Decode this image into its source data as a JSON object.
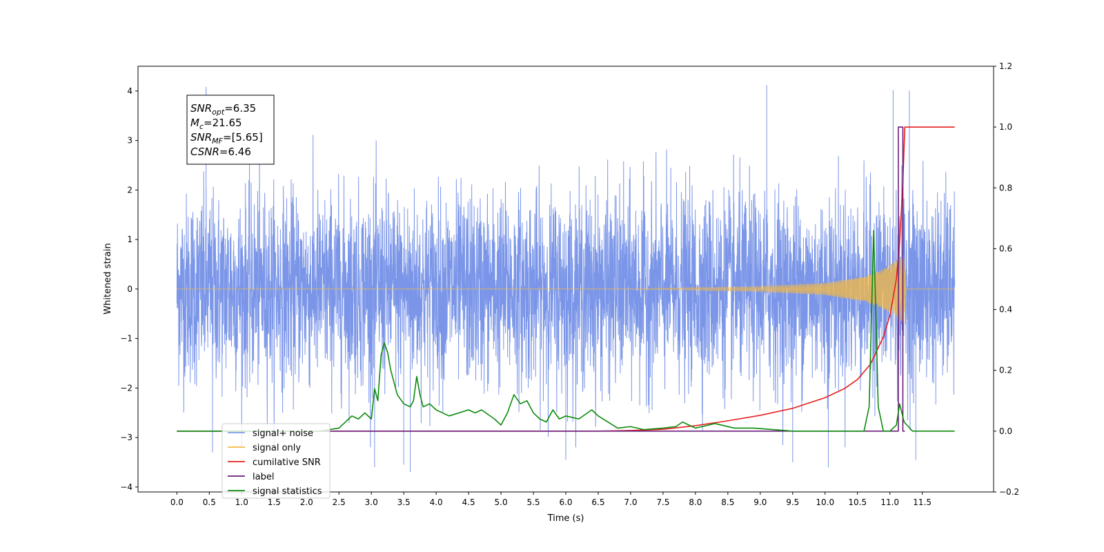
{
  "chart_data": {
    "type": "line",
    "xlabel": "Time (s)",
    "ylabel_left": "Whitened strain",
    "ylabel_right": "",
    "xlim": [
      -0.6,
      12.6
    ],
    "ylim_left": [
      -4.1,
      4.5
    ],
    "ylim_right": [
      -0.2,
      1.2
    ],
    "x_ticks": [
      0.0,
      0.5,
      1.0,
      1.5,
      2.0,
      2.5,
      3.0,
      3.5,
      4.0,
      4.5,
      5.0,
      5.5,
      6.0,
      6.5,
      7.0,
      7.5,
      8.0,
      8.5,
      9.0,
      9.5,
      10.0,
      10.5,
      11.0,
      11.5
    ],
    "x_tick_labels": [
      "0.0",
      "0.5",
      "1.0",
      "1.5",
      "2.0",
      "2.5",
      "3.0",
      "3.5",
      "4.0",
      "4.5",
      "5.0",
      "5.5",
      "6.0",
      "6.5",
      "7.0",
      "7.5",
      "8.0",
      "8.5",
      "9.0",
      "9.5",
      "10.0",
      "10.5",
      "11.0",
      "11.5"
    ],
    "y_left_ticks": [
      4,
      3,
      2,
      1,
      0,
      -1,
      -2,
      -3,
      -4
    ],
    "y_left_tick_labels": [
      "4",
      "3",
      "2",
      "1",
      "0",
      "−1",
      "−2",
      "−3",
      "−4"
    ],
    "y_right_ticks": [
      1.2,
      1.0,
      0.8,
      0.6,
      0.4,
      0.2,
      0.0,
      -0.2
    ],
    "y_right_tick_labels": [
      "1.2",
      "1.0",
      "0.8",
      "0.6",
      "0.4",
      "0.2",
      "0.0",
      "−0.2"
    ],
    "grid": false,
    "legend_position": "lower-left",
    "annotation": {
      "lines": [
        {
          "base": "SNR",
          "sub": "opt",
          "value": "=6.35"
        },
        {
          "base": "M",
          "sub": "c",
          "value": "=21.65"
        },
        {
          "base": "SNR",
          "sub": "MF",
          "value": "=[5.65]"
        },
        {
          "base": "CSNR",
          "sub": "",
          "value": "=6.46"
        }
      ]
    },
    "series": [
      {
        "name": "signal+ noise",
        "axis": "left",
        "color": "#7b96e8",
        "style": "noise",
        "x_range": [
          0.0,
          12.0
        ],
        "sigma": 0.95,
        "spikes": [
          [
            0.45,
            4.08
          ],
          [
            9.1,
            4.12
          ],
          [
            11.05,
            4.02
          ],
          [
            11.3,
            4.01
          ],
          [
            3.05,
            -3.6
          ],
          [
            3.6,
            -3.7
          ],
          [
            3.5,
            -3.55
          ],
          [
            10.05,
            -3.6
          ],
          [
            9.5,
            -3.5
          ],
          [
            6.0,
            -3.45
          ],
          [
            0.55,
            -3.3
          ],
          [
            11.4,
            -3.45
          ]
        ]
      },
      {
        "name": "signal only",
        "axis": "left",
        "color": "#f5b942",
        "style": "chirp",
        "x_range": [
          0.0,
          12.0
        ],
        "amplitude_points": [
          [
            0.0,
            0.0
          ],
          [
            7.0,
            0.005
          ],
          [
            9.0,
            0.05
          ],
          [
            10.0,
            0.12
          ],
          [
            10.6,
            0.25
          ],
          [
            10.9,
            0.4
          ],
          [
            11.1,
            0.58
          ],
          [
            11.22,
            0.7
          ],
          [
            11.25,
            0.0
          ],
          [
            12.0,
            0.0
          ]
        ]
      },
      {
        "name": "cumilative SNR",
        "axis": "right",
        "color": "#e81d1d",
        "points": [
          [
            0.0,
            0.0
          ],
          [
            6.5,
            0.0
          ],
          [
            7.0,
            0.002
          ],
          [
            7.5,
            0.006
          ],
          [
            8.0,
            0.018
          ],
          [
            8.5,
            0.034
          ],
          [
            9.0,
            0.052
          ],
          [
            9.5,
            0.075
          ],
          [
            10.0,
            0.11
          ],
          [
            10.3,
            0.14
          ],
          [
            10.5,
            0.17
          ],
          [
            10.7,
            0.22
          ],
          [
            10.9,
            0.31
          ],
          [
            11.0,
            0.38
          ],
          [
            11.1,
            0.5
          ],
          [
            11.15,
            0.62
          ],
          [
            11.2,
            0.82
          ],
          [
            11.23,
            1.0
          ],
          [
            12.0,
            1.0
          ]
        ]
      },
      {
        "name": "label",
        "axis": "right",
        "color": "#6a1b7a",
        "points": [
          [
            0.0,
            0.0
          ],
          [
            11.13,
            0.0
          ],
          [
            11.13,
            1.0
          ],
          [
            11.2,
            1.0
          ],
          [
            11.2,
            0.0
          ],
          [
            11.23,
            0.0
          ]
        ]
      },
      {
        "name": "signal statistics",
        "axis": "right",
        "color": "#0a8a0a",
        "points": [
          [
            0.0,
            0.0
          ],
          [
            2.2,
            0.0
          ],
          [
            2.5,
            0.01
          ],
          [
            2.7,
            0.05
          ],
          [
            2.8,
            0.04
          ],
          [
            2.9,
            0.06
          ],
          [
            3.0,
            0.04
          ],
          [
            3.05,
            0.14
          ],
          [
            3.1,
            0.1
          ],
          [
            3.15,
            0.25
          ],
          [
            3.2,
            0.29
          ],
          [
            3.25,
            0.26
          ],
          [
            3.3,
            0.2
          ],
          [
            3.4,
            0.12
          ],
          [
            3.5,
            0.09
          ],
          [
            3.6,
            0.08
          ],
          [
            3.65,
            0.1
          ],
          [
            3.7,
            0.18
          ],
          [
            3.75,
            0.12
          ],
          [
            3.8,
            0.08
          ],
          [
            3.9,
            0.09
          ],
          [
            4.0,
            0.07
          ],
          [
            4.2,
            0.05
          ],
          [
            4.5,
            0.07
          ],
          [
            4.6,
            0.06
          ],
          [
            4.7,
            0.07
          ],
          [
            4.9,
            0.04
          ],
          [
            5.0,
            0.02
          ],
          [
            5.1,
            0.06
          ],
          [
            5.2,
            0.12
          ],
          [
            5.3,
            0.09
          ],
          [
            5.4,
            0.1
          ],
          [
            5.5,
            0.06
          ],
          [
            5.6,
            0.04
          ],
          [
            5.7,
            0.03
          ],
          [
            5.8,
            0.07
          ],
          [
            5.9,
            0.04
          ],
          [
            6.0,
            0.05
          ],
          [
            6.2,
            0.04
          ],
          [
            6.4,
            0.07
          ],
          [
            6.5,
            0.05
          ],
          [
            6.8,
            0.01
          ],
          [
            7.0,
            0.015
          ],
          [
            7.2,
            0.005
          ],
          [
            7.5,
            0.01
          ],
          [
            7.7,
            0.015
          ],
          [
            7.8,
            0.03
          ],
          [
            8.0,
            0.01
          ],
          [
            8.3,
            0.025
          ],
          [
            8.6,
            0.01
          ],
          [
            8.9,
            0.01
          ],
          [
            9.5,
            0.0
          ],
          [
            10.6,
            0.0
          ],
          [
            10.68,
            0.08
          ],
          [
            10.75,
            0.66
          ],
          [
            10.82,
            0.08
          ],
          [
            10.9,
            0.0
          ],
          [
            11.0,
            0.0
          ],
          [
            11.1,
            0.02
          ],
          [
            11.15,
            0.09
          ],
          [
            11.22,
            0.03
          ],
          [
            11.35,
            0.0
          ],
          [
            12.0,
            0.0
          ]
        ]
      }
    ]
  }
}
